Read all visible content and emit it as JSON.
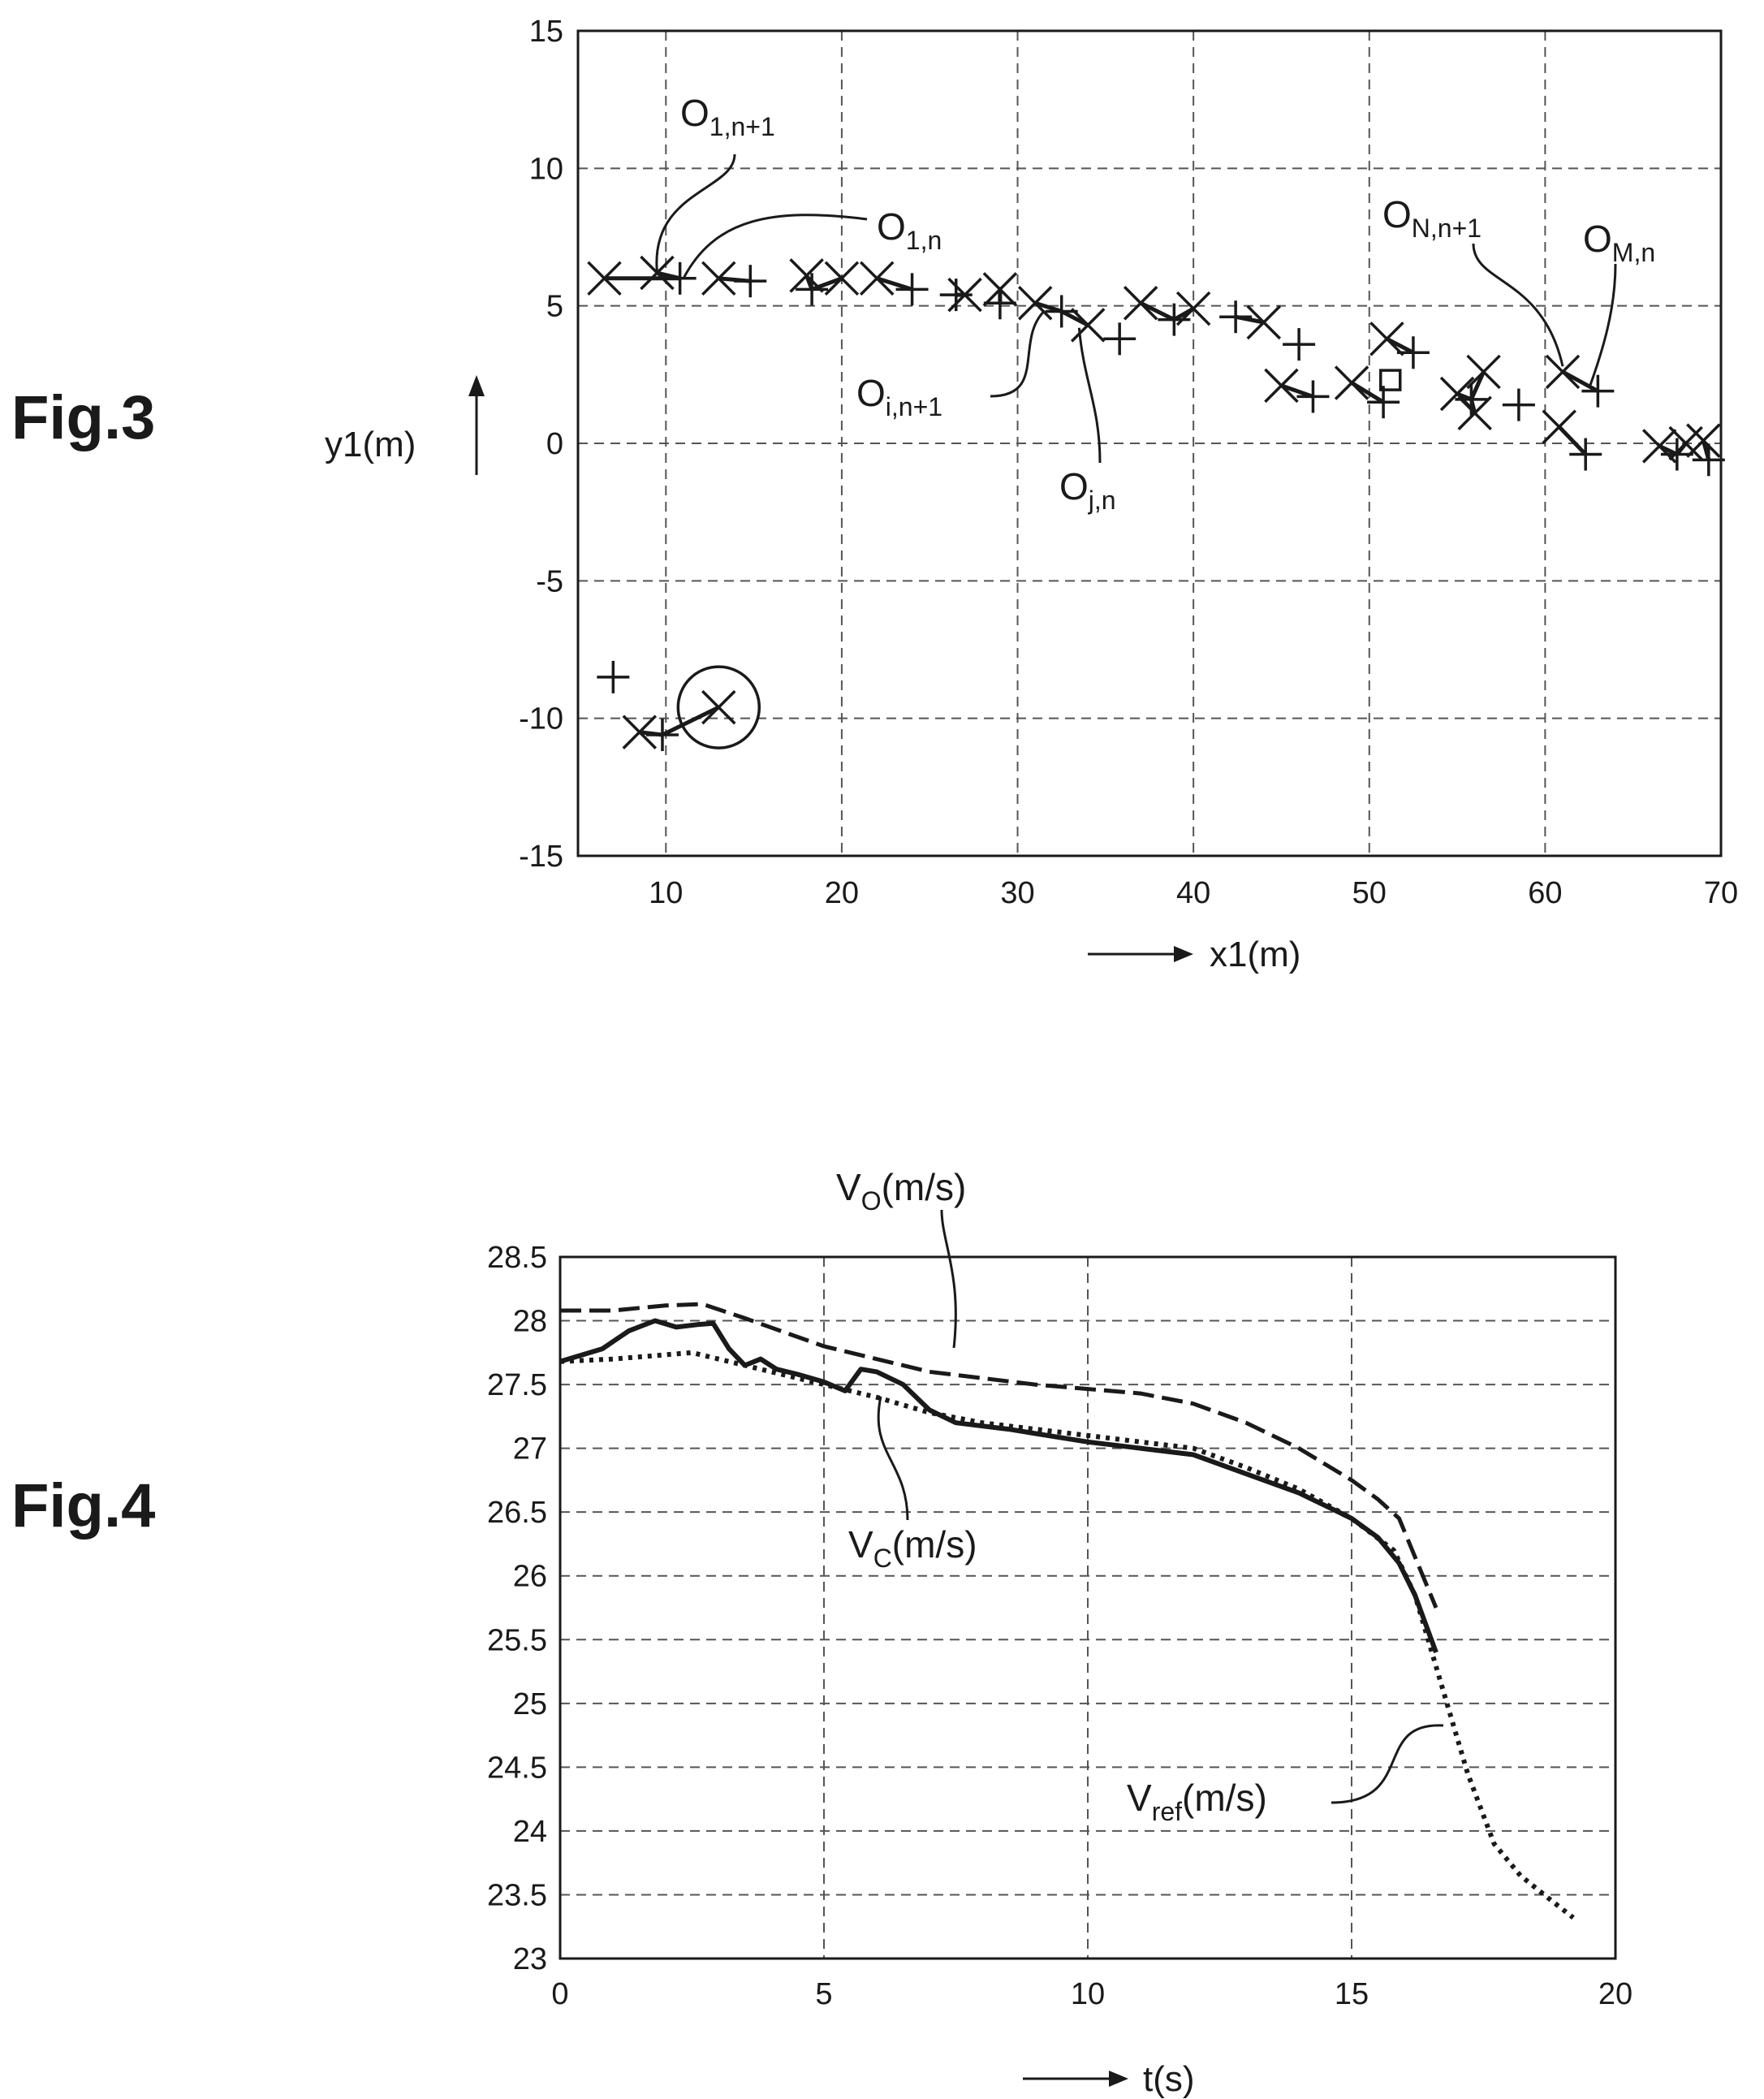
{
  "figures": {
    "fig3": {
      "label": "Fig.3"
    },
    "fig4": {
      "label": "Fig.4"
    }
  },
  "chart_data": [
    {
      "type": "scatter",
      "xlabel": "x1(m)",
      "ylabel": "y1(m)",
      "xlim": [
        5,
        70
      ],
      "ylim": [
        -15,
        15
      ],
      "x_ticks": [
        10,
        20,
        30,
        40,
        50,
        60,
        70
      ],
      "y_ticks": [
        15,
        10,
        5,
        0,
        -5,
        -10,
        -15
      ],
      "grid": true,
      "series": [
        {
          "marker": "x",
          "points": [
            [
              6.5,
              6
            ],
            [
              9.5,
              6.2
            ],
            [
              13,
              6
            ],
            [
              18,
              6.1
            ],
            [
              20,
              6
            ],
            [
              22,
              6
            ],
            [
              27,
              5.4
            ],
            [
              29,
              5.6
            ],
            [
              31,
              5.1
            ],
            [
              34,
              4.3
            ],
            [
              37,
              5.1
            ],
            [
              40,
              4.9
            ],
            [
              44,
              4.4
            ],
            [
              45,
              2.1
            ],
            [
              49,
              2.2
            ],
            [
              51,
              3.8
            ],
            [
              55,
              1.8
            ],
            [
              56,
              1.1
            ],
            [
              56.5,
              2.6
            ],
            [
              61,
              2.6
            ],
            [
              60.8,
              0.6
            ],
            [
              66.5,
              -0.1
            ],
            [
              68,
              0
            ],
            [
              69,
              0.1
            ],
            [
              8.5,
              -10.5
            ],
            [
              13,
              -9.6
            ]
          ]
        },
        {
          "marker": "+",
          "points": [
            [
              7,
              -8.5
            ],
            [
              10.8,
              6
            ],
            [
              14.8,
              5.9
            ],
            [
              18.3,
              5.6
            ],
            [
              24,
              5.6
            ],
            [
              26.5,
              5.4
            ],
            [
              29,
              5.1
            ],
            [
              32.5,
              4.8
            ],
            [
              35.8,
              3.8
            ],
            [
              38.9,
              4.5
            ],
            [
              42.4,
              4.6
            ],
            [
              46,
              3.6
            ],
            [
              46.8,
              1.7
            ],
            [
              50.8,
              1.5
            ],
            [
              52.5,
              3.3
            ],
            [
              55.8,
              1.6
            ],
            [
              58.5,
              1.4
            ],
            [
              62.3,
              -0.4
            ],
            [
              63,
              1.9
            ],
            [
              67.5,
              -0.4
            ],
            [
              69.3,
              -0.6
            ],
            [
              9.8,
              -10.6
            ]
          ]
        },
        {
          "marker": "square",
          "points": [
            [
              51.2,
              2.3
            ]
          ]
        }
      ],
      "highlighted_point": [
        13,
        -9.6
      ],
      "annotations": [
        {
          "text": "O",
          "subscript": "1,n+1",
          "target": [
            9.5,
            6.2
          ]
        },
        {
          "text": "O",
          "subscript": "1,n",
          "target": [
            11,
            6
          ]
        },
        {
          "text": "O",
          "subscript": "i,n+1",
          "target": [
            31.5,
            4.8
          ]
        },
        {
          "text": "O",
          "subscript": "j,n",
          "target": [
            33.5,
            4.2
          ]
        },
        {
          "text": "O",
          "subscript": "N,n+1",
          "target": [
            61,
            2.8
          ]
        },
        {
          "text": "O",
          "subscript": "M,n",
          "target": [
            62.5,
            2.0
          ]
        }
      ]
    },
    {
      "type": "line",
      "xlabel": "t(s)",
      "ylabel": "",
      "xlim": [
        0,
        20
      ],
      "ylim": [
        23,
        28.5
      ],
      "x_ticks": [
        0,
        5,
        10,
        15,
        20
      ],
      "y_ticks": [
        28.5,
        28,
        27.5,
        27,
        26.5,
        26,
        25.5,
        25,
        24.5,
        24,
        23.5,
        23
      ],
      "grid": true,
      "series": [
        {
          "name": "VO(m/s)",
          "label_main": "V",
          "label_sub": "O",
          "label_suffix": "(m/s)",
          "style": "dashed",
          "x": [
            0,
            1,
            2,
            2.7,
            3.5,
            5,
            7,
            9,
            11,
            12,
            13,
            14,
            15,
            15.5,
            15.9,
            16.2,
            16.6
          ],
          "values": [
            28.08,
            28.08,
            28.12,
            28.13,
            28.02,
            27.8,
            27.6,
            27.5,
            27.43,
            27.35,
            27.2,
            27.0,
            26.75,
            26.6,
            26.45,
            26.15,
            25.75
          ]
        },
        {
          "name": "VC(m/s)",
          "label_main": "V",
          "label_sub": "C",
          "label_suffix": "(m/s)",
          "style": "solid",
          "x": [
            0,
            0.8,
            1.3,
            1.8,
            2.2,
            2.6,
            2.9,
            3.2,
            3.5,
            3.8,
            4.1,
            4.5,
            5,
            5.4,
            5.7,
            6,
            6.5,
            7,
            7.5,
            8.5,
            10,
            11,
            12,
            13,
            14,
            15,
            15.5,
            15.9,
            16.2,
            16.6
          ],
          "values": [
            27.68,
            27.78,
            27.92,
            28.0,
            27.95,
            27.97,
            27.98,
            27.78,
            27.65,
            27.7,
            27.62,
            27.58,
            27.52,
            27.45,
            27.62,
            27.6,
            27.5,
            27.3,
            27.2,
            27.15,
            27.05,
            27.0,
            26.95,
            26.8,
            26.65,
            26.45,
            26.3,
            26.1,
            25.85,
            25.4
          ]
        },
        {
          "name": "Vref(m/s)",
          "label_main": "V",
          "label_sub": "ref",
          "label_suffix": "(m/s)",
          "style": "dotted",
          "x": [
            0,
            1,
            2.5,
            3.5,
            5,
            6,
            7,
            8,
            9,
            10,
            11,
            12,
            13,
            14,
            15,
            15.8,
            16.2,
            16.7,
            17.2,
            17.7,
            18.2,
            18.8,
            19.2
          ],
          "values": [
            27.68,
            27.7,
            27.75,
            27.65,
            27.5,
            27.4,
            27.28,
            27.2,
            27.15,
            27.1,
            27.05,
            27.0,
            26.85,
            26.68,
            26.45,
            26.2,
            25.85,
            25.15,
            24.45,
            23.9,
            23.65,
            23.45,
            23.32
          ]
        }
      ]
    }
  ]
}
